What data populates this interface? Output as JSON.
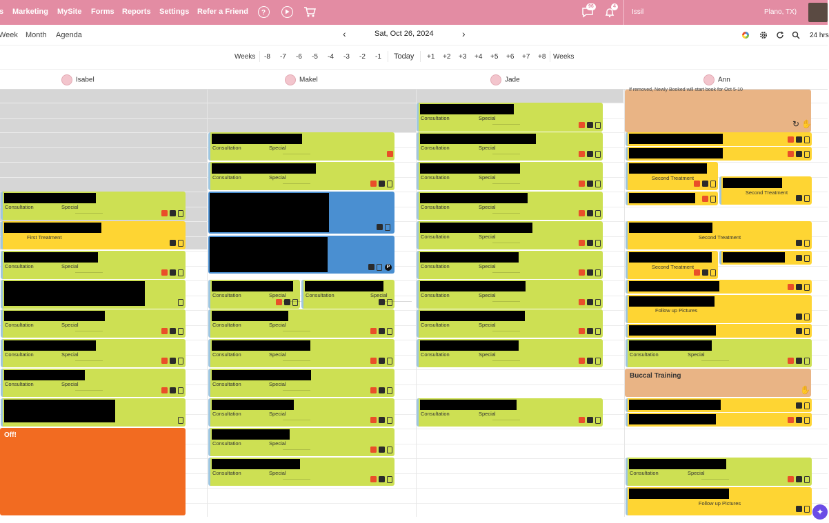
{
  "nav": {
    "items": [
      "s",
      "Marketing",
      "MySite",
      "Forms",
      "Reports",
      "Settings",
      "Refer a Friend"
    ],
    "messages_count": "96",
    "notifications_count": "4",
    "user": "Issil",
    "location": "Plano, TX)"
  },
  "view": {
    "tabs": [
      "Week",
      "Month",
      "Agenda"
    ],
    "date": "Sat, Oct 26, 2024",
    "hours": "24 hrs"
  },
  "weeks": {
    "label_left": "Weeks",
    "back": [
      "-8",
      "-7",
      "-6",
      "-5",
      "-4",
      "-3",
      "-2",
      "-1"
    ],
    "today": "Today",
    "fwd": [
      "+1",
      "+2",
      "+3",
      "+4",
      "+5",
      "+6",
      "+7",
      "+8"
    ],
    "label_right": "Weeks"
  },
  "staff": [
    "Isabel",
    "Makel",
    "Jade",
    "Ann"
  ],
  "labels": {
    "consultation": "Consultation",
    "special": "Special",
    "first_treatment": "First Treatment",
    "second_treatment": "Second Treatment",
    "follow_up": "Follow up Pictures",
    "off": "Off!",
    "buccal": "Buccal Training",
    "note": "If removed, Newly Booked will start book for Oct 5-10"
  },
  "colors": {
    "header": "#e38ca3",
    "green": "#cde053",
    "yellow": "#fed533",
    "blue": "#4a8fd1",
    "orange": "#f26b21",
    "tan": "#e9b485"
  }
}
